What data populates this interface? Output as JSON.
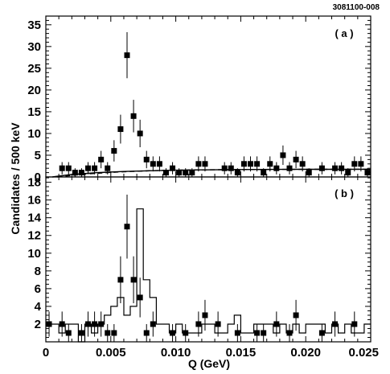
{
  "figure_id": "3081100-008",
  "chart_data": [
    {
      "panel": "a",
      "label": "( a )",
      "type": "scatter",
      "xlabel": "Q (GeV)",
      "ylabel": "Candidates / 500 keV",
      "xlim": [
        0,
        0.025
      ],
      "ylim": [
        0,
        37
      ],
      "x_ticks": [
        "0",
        "0.005",
        "0.010",
        "0.015",
        "0.020",
        "0.025"
      ],
      "y_ticks": [
        0,
        5,
        10,
        15,
        20,
        25,
        30,
        35
      ],
      "points": {
        "x": [
          0.00125,
          0.00175,
          0.00225,
          0.00275,
          0.00325,
          0.00375,
          0.00425,
          0.00475,
          0.00525,
          0.00575,
          0.00625,
          0.00675,
          0.00725,
          0.00775,
          0.00825,
          0.00875,
          0.00925,
          0.00975,
          0.01025,
          0.01075,
          0.01125,
          0.01175,
          0.01225,
          0.01375,
          0.01425,
          0.01475,
          0.01525,
          0.01575,
          0.01625,
          0.01675,
          0.01725,
          0.01775,
          0.01825,
          0.01875,
          0.01925,
          0.01975,
          0.02025,
          0.02125,
          0.02225,
          0.02275,
          0.02325,
          0.02375,
          0.02425,
          0.02475
        ],
        "y": [
          2,
          2,
          1,
          1,
          2,
          2,
          4,
          2,
          6,
          11,
          28,
          14,
          10,
          4,
          3,
          3,
          1,
          2,
          1,
          1,
          1,
          3,
          3,
          2,
          2,
          1,
          3,
          3,
          3,
          1,
          3,
          2,
          5,
          2,
          4,
          3,
          1,
          2,
          2,
          2,
          1,
          3,
          3,
          1
        ]
      },
      "curves": [
        {
          "style": "dashed",
          "x": [
            0.0009,
            0.002,
            0.003,
            0.004,
            0.005,
            0.006,
            0.007,
            0.008,
            0.009,
            0.01,
            0.012,
            0.014,
            0.016,
            0.018,
            0.02,
            0.022,
            0.025
          ],
          "y": [
            0,
            0.35,
            0.65,
            0.85,
            1.05,
            1.2,
            1.32,
            1.42,
            1.5,
            1.55,
            1.63,
            1.68,
            1.72,
            1.74,
            1.75,
            1.76,
            1.77
          ]
        },
        {
          "style": "solid",
          "x": [
            0.0005,
            0.002,
            0.004,
            0.006,
            0.008,
            0.01,
            0.012,
            0.014,
            0.016,
            0.018,
            0.02,
            0.022,
            0.025
          ],
          "y": [
            0,
            0.6,
            1.0,
            1.25,
            1.42,
            1.55,
            1.62,
            1.68,
            1.72,
            1.74,
            1.75,
            1.76,
            1.77
          ]
        }
      ]
    },
    {
      "panel": "b",
      "label": "( b )",
      "type": "scatter",
      "xlabel": "Q (GeV)",
      "ylabel": "Candidates / 500 keV",
      "xlim": [
        0,
        0.025
      ],
      "ylim": [
        0,
        18.6
      ],
      "x_ticks": [
        "0",
        "0.005",
        "0.010",
        "0.015",
        "0.020",
        "0.025"
      ],
      "y_ticks": [
        2,
        4,
        6,
        8,
        10,
        12,
        14,
        16,
        18
      ],
      "points": {
        "x": [
          0.00025,
          0.00125,
          0.00175,
          0.00275,
          0.00325,
          0.00375,
          0.00425,
          0.00475,
          0.00525,
          0.00575,
          0.00625,
          0.00675,
          0.00725,
          0.00775,
          0.00825,
          0.00975,
          0.01075,
          0.01175,
          0.01225,
          0.01325,
          0.01475,
          0.01625,
          0.01675,
          0.01775,
          0.01875,
          0.01925,
          0.02125,
          0.02225,
          0.02375
        ],
        "y": [
          2,
          2,
          1,
          1,
          2,
          2,
          2,
          1,
          1,
          7,
          13,
          7,
          5,
          1,
          2,
          1,
          1,
          2,
          3,
          2,
          1,
          1,
          1,
          2,
          1,
          3,
          1,
          2,
          2
        ]
      },
      "histogram": {
        "bin_width": 0.0005,
        "edges_start": 0.0,
        "counts": [
          2,
          2,
          1,
          2,
          2,
          0,
          2,
          1,
          2,
          3,
          4,
          5,
          3,
          4,
          15,
          7,
          5,
          2,
          2,
          1,
          2,
          1,
          1,
          1,
          2,
          2,
          1,
          1,
          2,
          3,
          1,
          1,
          2,
          2,
          2,
          1,
          2,
          1,
          2,
          1,
          2,
          2,
          2,
          1,
          2,
          1,
          2,
          1,
          1,
          2
        ]
      }
    }
  ]
}
